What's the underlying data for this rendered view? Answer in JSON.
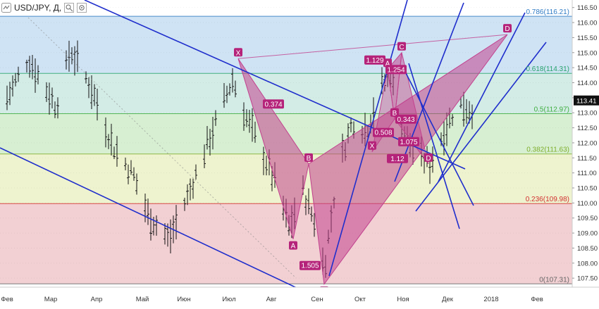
{
  "header": {
    "symbol": "USD/JPY, Д,",
    "zoom_icon": "zoom-icon",
    "settings_icon": "settings-icon"
  },
  "colors": {
    "price_scale_bg": "#ffffff",
    "trendline": "#1f2ecc",
    "pattern_fill": "#c2418e",
    "pattern_label_bg": "#b5237a",
    "bars": "#111111",
    "current_price_bg": "#111111"
  },
  "chart_data": {
    "type": "ohlc-bar",
    "instrument": "USD/JPY",
    "timeframe": "Д",
    "current_price": "113.41",
    "y_ticks": [
      "116.50",
      "116.00",
      "115.50",
      "115.00",
      "114.50",
      "114.00",
      "113.50",
      "113.00",
      "112.50",
      "112.00",
      "111.50",
      "111.00",
      "110.50",
      "110.00",
      "109.50",
      "109.00",
      "108.50",
      "108.00",
      "107.50"
    ],
    "x_ticks": [
      "Фев",
      "Мар",
      "Апр",
      "Май",
      "Июн",
      "Июл",
      "Авг",
      "Сен",
      "Окт",
      "Ноя",
      "Дек",
      "2018",
      "Фев"
    ],
    "y_range": [
      107.2,
      116.75
    ],
    "fibonacci_levels": [
      {
        "label": "0.786(116.21)",
        "ratio": 0.786,
        "price": 116.21,
        "color": "#2f7bc4",
        "zone_color": "#cfe3f4"
      },
      {
        "label": "0.618(114.31)",
        "ratio": 0.618,
        "price": 114.31,
        "color": "#27a36d",
        "zone_color": "#d3ece6"
      },
      {
        "label": "0.5(112.97)",
        "ratio": 0.5,
        "price": 112.97,
        "color": "#3fae3f",
        "zone_color": "#d7efd2"
      },
      {
        "label": "0.382(111.63)",
        "ratio": 0.382,
        "price": 111.63,
        "color": "#7fae2c",
        "zone_color": "#eef3cf"
      },
      {
        "label": "0.236(109.98)",
        "ratio": 0.236,
        "price": 109.98,
        "color": "#d32f2f",
        "zone_color": "#f2d0d3"
      },
      {
        "label": "0(107.31)",
        "ratio": 0,
        "price": 107.31,
        "color": "#666666",
        "zone_color": "#f2d0d3"
      }
    ],
    "pattern_points": [
      {
        "label": "X",
        "date_index": 164,
        "price": 114.8
      },
      {
        "label": "A",
        "date_index": 203,
        "price": 108.8
      },
      {
        "label": "B",
        "date_index": 214,
        "price": 111.3
      },
      {
        "label": "C",
        "date_index": 225,
        "price": 107.3
      },
      {
        "label": "X",
        "date_index": 259,
        "price": 111.7
      },
      {
        "label": "A",
        "date_index": 270,
        "price": 114.45
      },
      {
        "label": "B",
        "date_index": 275,
        "price": 112.8
      },
      {
        "label": "C",
        "date_index": 280,
        "price": 115.0
      },
      {
        "label": "D",
        "date_index": 299,
        "price": 111.3
      },
      {
        "label": "D",
        "date_index": 355,
        "price": 115.6
      }
    ],
    "pattern_ratios": [
      "0.374",
      "1.505",
      "0.508",
      "1.129",
      "1.254",
      "0.343",
      "1.075",
      "1.12"
    ],
    "series": [
      {
        "name": "USD/JPY",
        "description": "daily OHLC bars"
      }
    ]
  }
}
